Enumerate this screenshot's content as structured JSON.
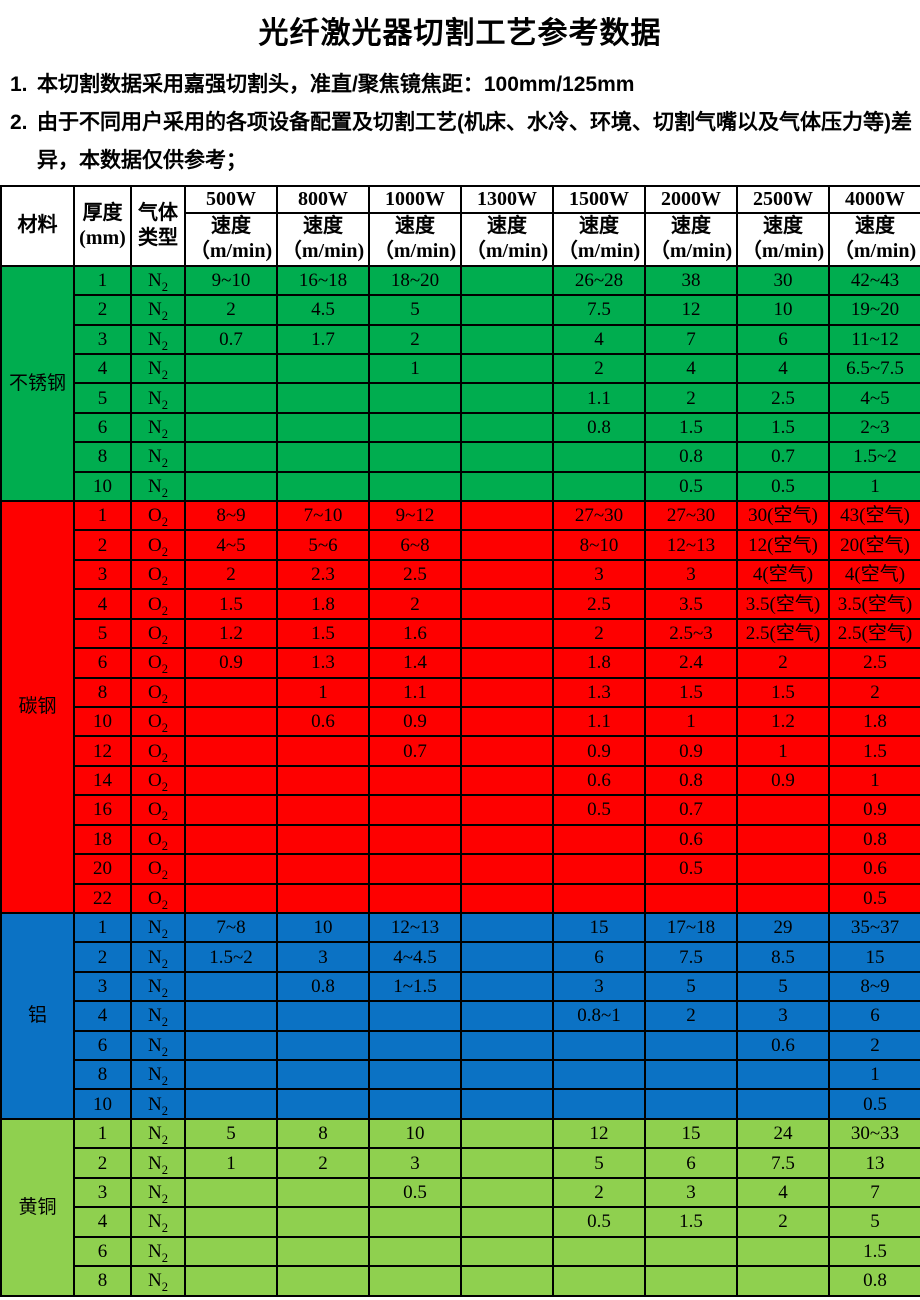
{
  "title": "光纤激光器切割工艺参考数据",
  "notes": [
    {
      "num": "1.",
      "text": "本切割数据采用嘉强切割头，准直/聚焦镜焦距：100mm/125mm"
    },
    {
      "num": "2.",
      "text": "由于不同用户采用的各项设备配置及切割工艺(机床、水冷、环境、切割气嘴以及气体压力等)差异，本数据仅供参考；"
    }
  ],
  "table": {
    "header": {
      "material_label": "材料",
      "thickness_label": "厚度",
      "thickness_unit": "(mm)",
      "gas_label_line1": "气体",
      "gas_label_line2": "类型",
      "power_columns": [
        "500W",
        "800W",
        "1000W",
        "1300W",
        "1500W",
        "2000W",
        "2500W",
        "4000W"
      ],
      "speed_label": "速度",
      "speed_unit": "（m/min)"
    },
    "sections": [
      {
        "material": "不锈钢",
        "color": "#00AD4F",
        "gas": "N",
        "gas_sub": "2",
        "rows": [
          {
            "thickness": "1",
            "speeds": [
              "9~10",
              "16~18",
              "18~20",
              "",
              "26~28",
              "38",
              "30",
              "42~43"
            ]
          },
          {
            "thickness": "2",
            "speeds": [
              "2",
              "4.5",
              "5",
              "",
              "7.5",
              "12",
              "10",
              "19~20"
            ]
          },
          {
            "thickness": "3",
            "speeds": [
              "0.7",
              "1.7",
              "2",
              "",
              "4",
              "7",
              "6",
              "11~12"
            ]
          },
          {
            "thickness": "4",
            "speeds": [
              "",
              "",
              "1",
              "",
              "2",
              "4",
              "4",
              "6.5~7.5"
            ]
          },
          {
            "thickness": "5",
            "speeds": [
              "",
              "",
              "",
              "",
              "1.1",
              "2",
              "2.5",
              "4~5"
            ]
          },
          {
            "thickness": "6",
            "speeds": [
              "",
              "",
              "",
              "",
              "0.8",
              "1.5",
              "1.5",
              "2~3"
            ]
          },
          {
            "thickness": "8",
            "speeds": [
              "",
              "",
              "",
              "",
              "",
              "0.8",
              "0.7",
              "1.5~2"
            ]
          },
          {
            "thickness": "10",
            "speeds": [
              "",
              "",
              "",
              "",
              "",
              "0.5",
              "0.5",
              "1"
            ]
          }
        ]
      },
      {
        "material": "碳钢",
        "color": "#FE0000",
        "gas": "O",
        "gas_sub": "2",
        "rows": [
          {
            "thickness": "1",
            "speeds": [
              "8~9",
              "7~10",
              "9~12",
              "",
              "27~30",
              "27~30",
              "30(空气)",
              "43(空气)"
            ]
          },
          {
            "thickness": "2",
            "speeds": [
              "4~5",
              "5~6",
              "6~8",
              "",
              "8~10",
              "12~13",
              "12(空气)",
              "20(空气)"
            ]
          },
          {
            "thickness": "3",
            "speeds": [
              "2",
              "2.3",
              "2.5",
              "",
              "3",
              "3",
              "4(空气)",
              "4(空气)"
            ]
          },
          {
            "thickness": "4",
            "speeds": [
              "1.5",
              "1.8",
              "2",
              "",
              "2.5",
              "3.5",
              "3.5(空气)",
              "3.5(空气)"
            ]
          },
          {
            "thickness": "5",
            "speeds": [
              "1.2",
              "1.5",
              "1.6",
              "",
              "2",
              "2.5~3",
              "2.5(空气)",
              "2.5(空气)"
            ]
          },
          {
            "thickness": "6",
            "speeds": [
              "0.9",
              "1.3",
              "1.4",
              "",
              "1.8",
              "2.4",
              "2",
              "2.5"
            ]
          },
          {
            "thickness": "8",
            "speeds": [
              "",
              "1",
              "1.1",
              "",
              "1.3",
              "1.5",
              "1.5",
              "2"
            ]
          },
          {
            "thickness": "10",
            "speeds": [
              "",
              "0.6",
              "0.9",
              "",
              "1.1",
              "1",
              "1.2",
              "1.8"
            ]
          },
          {
            "thickness": "12",
            "speeds": [
              "",
              "",
              "0.7",
              "",
              "0.9",
              "0.9",
              "1",
              "1.5"
            ]
          },
          {
            "thickness": "14",
            "speeds": [
              "",
              "",
              "",
              "",
              "0.6",
              "0.8",
              "0.9",
              "1"
            ]
          },
          {
            "thickness": "16",
            "speeds": [
              "",
              "",
              "",
              "",
              "0.5",
              "0.7",
              "",
              "0.9"
            ]
          },
          {
            "thickness": "18",
            "speeds": [
              "",
              "",
              "",
              "",
              "",
              "0.6",
              "",
              "0.8"
            ]
          },
          {
            "thickness": "20",
            "speeds": [
              "",
              "",
              "",
              "",
              "",
              "0.5",
              "",
              "0.6"
            ]
          },
          {
            "thickness": "22",
            "speeds": [
              "",
              "",
              "",
              "",
              "",
              "",
              "",
              "0.5"
            ]
          }
        ]
      },
      {
        "material": "铝",
        "color": "#0B72C4",
        "gas": "N",
        "gas_sub": "2",
        "rows": [
          {
            "thickness": "1",
            "speeds": [
              "7~8",
              "10",
              "12~13",
              "",
              "15",
              "17~18",
              "29",
              "35~37"
            ]
          },
          {
            "thickness": "2",
            "speeds": [
              "1.5~2",
              "3",
              "4~4.5",
              "",
              "6",
              "7.5",
              "8.5",
              "15"
            ]
          },
          {
            "thickness": "3",
            "speeds": [
              "",
              "0.8",
              "1~1.5",
              "",
              "3",
              "5",
              "5",
              "8~9"
            ]
          },
          {
            "thickness": "4",
            "speeds": [
              "",
              "",
              "",
              "",
              "0.8~1",
              "2",
              "3",
              "6"
            ]
          },
          {
            "thickness": "6",
            "speeds": [
              "",
              "",
              "",
              "",
              "",
              "",
              "0.6",
              "2"
            ]
          },
          {
            "thickness": "8",
            "speeds": [
              "",
              "",
              "",
              "",
              "",
              "",
              "",
              "1"
            ]
          },
          {
            "thickness": "10",
            "speeds": [
              "",
              "",
              "",
              "",
              "",
              "",
              "",
              "0.5"
            ]
          }
        ]
      },
      {
        "material": "黄铜",
        "color": "#8FD04F",
        "gas": "N",
        "gas_sub": "2",
        "rows": [
          {
            "thickness": "1",
            "speeds": [
              "5",
              "8",
              "10",
              "",
              "12",
              "15",
              "24",
              "30~33"
            ]
          },
          {
            "thickness": "2",
            "speeds": [
              "1",
              "2",
              "3",
              "",
              "5",
              "6",
              "7.5",
              "13"
            ]
          },
          {
            "thickness": "3",
            "speeds": [
              "",
              "",
              "0.5",
              "",
              "2",
              "3",
              "4",
              "7"
            ]
          },
          {
            "thickness": "4",
            "speeds": [
              "",
              "",
              "",
              "",
              "0.5",
              "1.5",
              "2",
              "5"
            ]
          },
          {
            "thickness": "6",
            "speeds": [
              "",
              "",
              "",
              "",
              "",
              "",
              "",
              "1.5"
            ]
          },
          {
            "thickness": "8",
            "speeds": [
              "",
              "",
              "",
              "",
              "",
              "",
              "",
              "0.8"
            ]
          }
        ]
      }
    ]
  }
}
